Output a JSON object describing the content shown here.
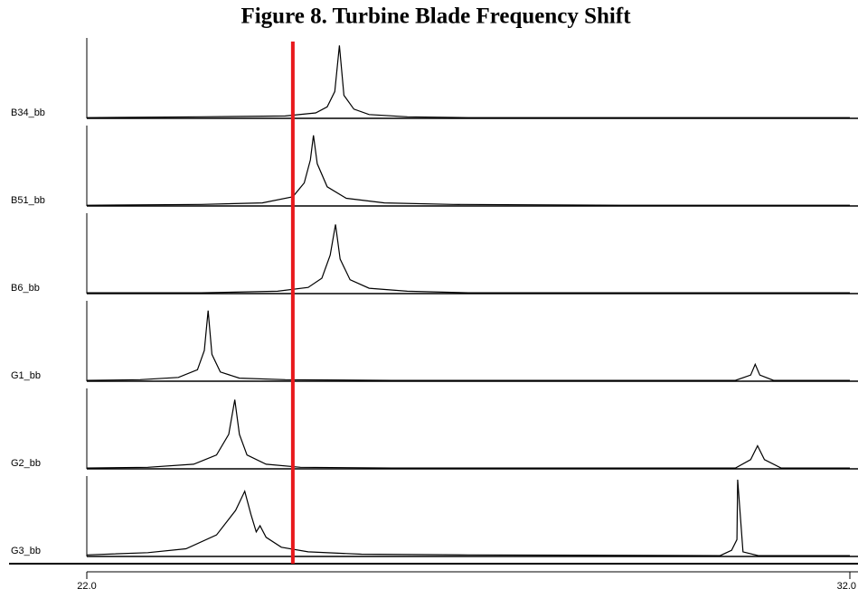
{
  "chart_data": {
    "type": "line",
    "title": "Figure 8. Turbine Blade Frequency Shift",
    "xlim": [
      22,
      32
    ],
    "xticks": [
      {
        "value": 22,
        "label": "22.0"
      },
      {
        "value": 32,
        "label": "32.0"
      }
    ],
    "ylim": [
      0,
      100
    ],
    "marker_line": {
      "x": 24.7,
      "color": "#e8191c"
    },
    "series": [
      {
        "name": "B34_bb",
        "color": "#000000",
        "x": [
          22,
          23.5,
          24.6,
          25.0,
          25.15,
          25.25,
          25.31,
          25.37,
          25.5,
          25.7,
          26.2,
          27,
          29,
          32
        ],
        "values": [
          1,
          2,
          3,
          7,
          15,
          35,
          95,
          30,
          12,
          5,
          2,
          1,
          1,
          1
        ]
      },
      {
        "name": "B51_bb",
        "color": "#000000",
        "x": [
          22,
          23.5,
          24.3,
          24.7,
          24.85,
          24.93,
          24.97,
          25.02,
          25.15,
          25.4,
          25.9,
          26.8,
          29,
          32
        ],
        "values": [
          1,
          2,
          4,
          12,
          30,
          60,
          92,
          55,
          25,
          10,
          4,
          2,
          1,
          1
        ]
      },
      {
        "name": "B6_bb",
        "color": "#000000",
        "x": [
          22,
          23.5,
          24.5,
          24.9,
          25.08,
          25.19,
          25.26,
          25.32,
          25.45,
          25.7,
          26.2,
          27,
          29,
          32
        ],
        "values": [
          1,
          1,
          3,
          8,
          20,
          50,
          90,
          45,
          18,
          7,
          3,
          1,
          1,
          1
        ]
      },
      {
        "name": "G1_bb",
        "color": "#000000",
        "x": [
          22,
          22.7,
          23.2,
          23.45,
          23.54,
          23.59,
          23.64,
          23.75,
          24.0,
          24.6,
          26,
          30.5,
          30.7,
          30.76,
          30.82,
          31.0,
          32
        ],
        "values": [
          1,
          2,
          5,
          15,
          40,
          92,
          35,
          12,
          4,
          2,
          1,
          1,
          8,
          22,
          8,
          1,
          1
        ]
      },
      {
        "name": "G2_bb",
        "color": "#000000",
        "x": [
          22,
          22.8,
          23.4,
          23.7,
          23.86,
          23.94,
          24.0,
          24.1,
          24.35,
          24.8,
          26,
          30.5,
          30.7,
          30.79,
          30.88,
          31.1,
          32
        ],
        "values": [
          1,
          2,
          6,
          18,
          45,
          90,
          45,
          18,
          6,
          2,
          1,
          1,
          12,
          30,
          12,
          1,
          1
        ]
      },
      {
        "name": "G3_bb",
        "color": "#000000",
        "x": [
          22,
          22.8,
          23.3,
          23.7,
          23.95,
          24.07,
          24.15,
          24.22,
          24.27,
          24.35,
          24.55,
          24.9,
          25.6,
          27,
          30.3,
          30.45,
          30.52,
          30.53,
          30.6,
          30.8,
          32
        ],
        "values": [
          2,
          5,
          10,
          28,
          60,
          85,
          55,
          32,
          40,
          25,
          12,
          6,
          3,
          2,
          1,
          8,
          22,
          100,
          6,
          1,
          1
        ]
      }
    ]
  }
}
